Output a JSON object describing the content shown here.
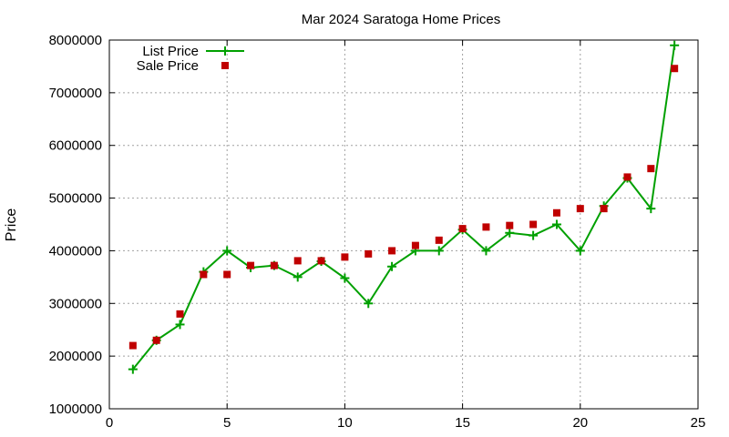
{
  "chart_data": {
    "type": "line",
    "title": "Mar 2024 Saratoga Home Prices",
    "xlabel": "",
    "ylabel": "Price",
    "xlim": [
      0,
      25
    ],
    "ylim": [
      1000000,
      8000000
    ],
    "xticks": [
      "0",
      "5",
      "10",
      "15",
      "20",
      "25"
    ],
    "yticks": [
      "1000000",
      "2000000",
      "3000000",
      "4000000",
      "5000000",
      "6000000",
      "7000000",
      "8000000"
    ],
    "grid": true,
    "legend": "top-left",
    "x": [
      1,
      2,
      3,
      4,
      5,
      6,
      7,
      8,
      9,
      10,
      11,
      12,
      13,
      14,
      15,
      16,
      17,
      18,
      19,
      20,
      21,
      22,
      23,
      24
    ],
    "series": [
      {
        "name": "List Price",
        "style": "line-cross",
        "color": "#00a000",
        "values": [
          1750000,
          2300000,
          2600000,
          3600000,
          4000000,
          3680000,
          3720000,
          3500000,
          3800000,
          3480000,
          3000000,
          3700000,
          4000000,
          4000000,
          4400000,
          4000000,
          4340000,
          4290000,
          4500000,
          4000000,
          4850000,
          5380000,
          4800000,
          7900000
        ]
      },
      {
        "name": "Sale Price",
        "style": "square",
        "color": "#c00000",
        "values": [
          2200000,
          2300000,
          2800000,
          3550000,
          3550000,
          3720000,
          3720000,
          3810000,
          3810000,
          3880000,
          3940000,
          4000000,
          4100000,
          4200000,
          4420000,
          4450000,
          4480000,
          4500000,
          4720000,
          4800000,
          4800000,
          5400000,
          5560000,
          7460000
        ]
      }
    ]
  }
}
